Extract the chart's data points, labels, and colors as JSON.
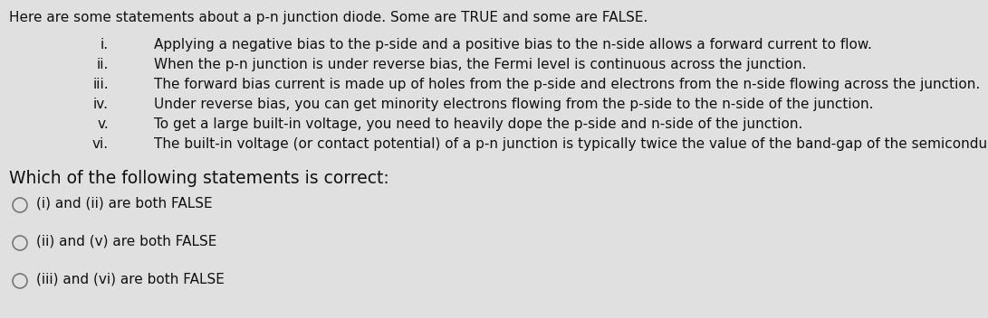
{
  "bg_color": "#e0e0e0",
  "title_line": "Here are some statements about a p-n junction diode. Some are TRUE and some are FALSE.",
  "items": [
    [
      "i.",
      "Applying a negative bias to the p-side and a positive bias to the n-side allows a forward current to flow."
    ],
    [
      "ii.",
      "When the p-n junction is under reverse bias, the Fermi level is continuous across the junction."
    ],
    [
      "iii.",
      "The forward bias current is made up of holes from the p-side and electrons from the n-side flowing across the junction."
    ],
    [
      "iv.",
      "Under reverse bias, you can get minority electrons flowing from the p-side to the n-side of the junction."
    ],
    [
      "v.",
      "To get a large built-in voltage, you need to heavily dope the p-side and n-side of the junction."
    ],
    [
      "vi.",
      "The built-in voltage (or contact potential) of a p-n junction is typically twice the value of the band-gap of the semiconductor."
    ]
  ],
  "question_line": "Which of the following statements is correct:",
  "options": [
    "(i) and (ii) are both FALSE",
    "(ii) and (v) are both FALSE",
    "(iii) and (vi) are both FALSE"
  ],
  "text_color": "#111111",
  "title_fontsize": 11.0,
  "item_fontsize": 11.0,
  "question_fontsize": 13.5,
  "option_fontsize": 11.0,
  "circle_color": "#777777"
}
